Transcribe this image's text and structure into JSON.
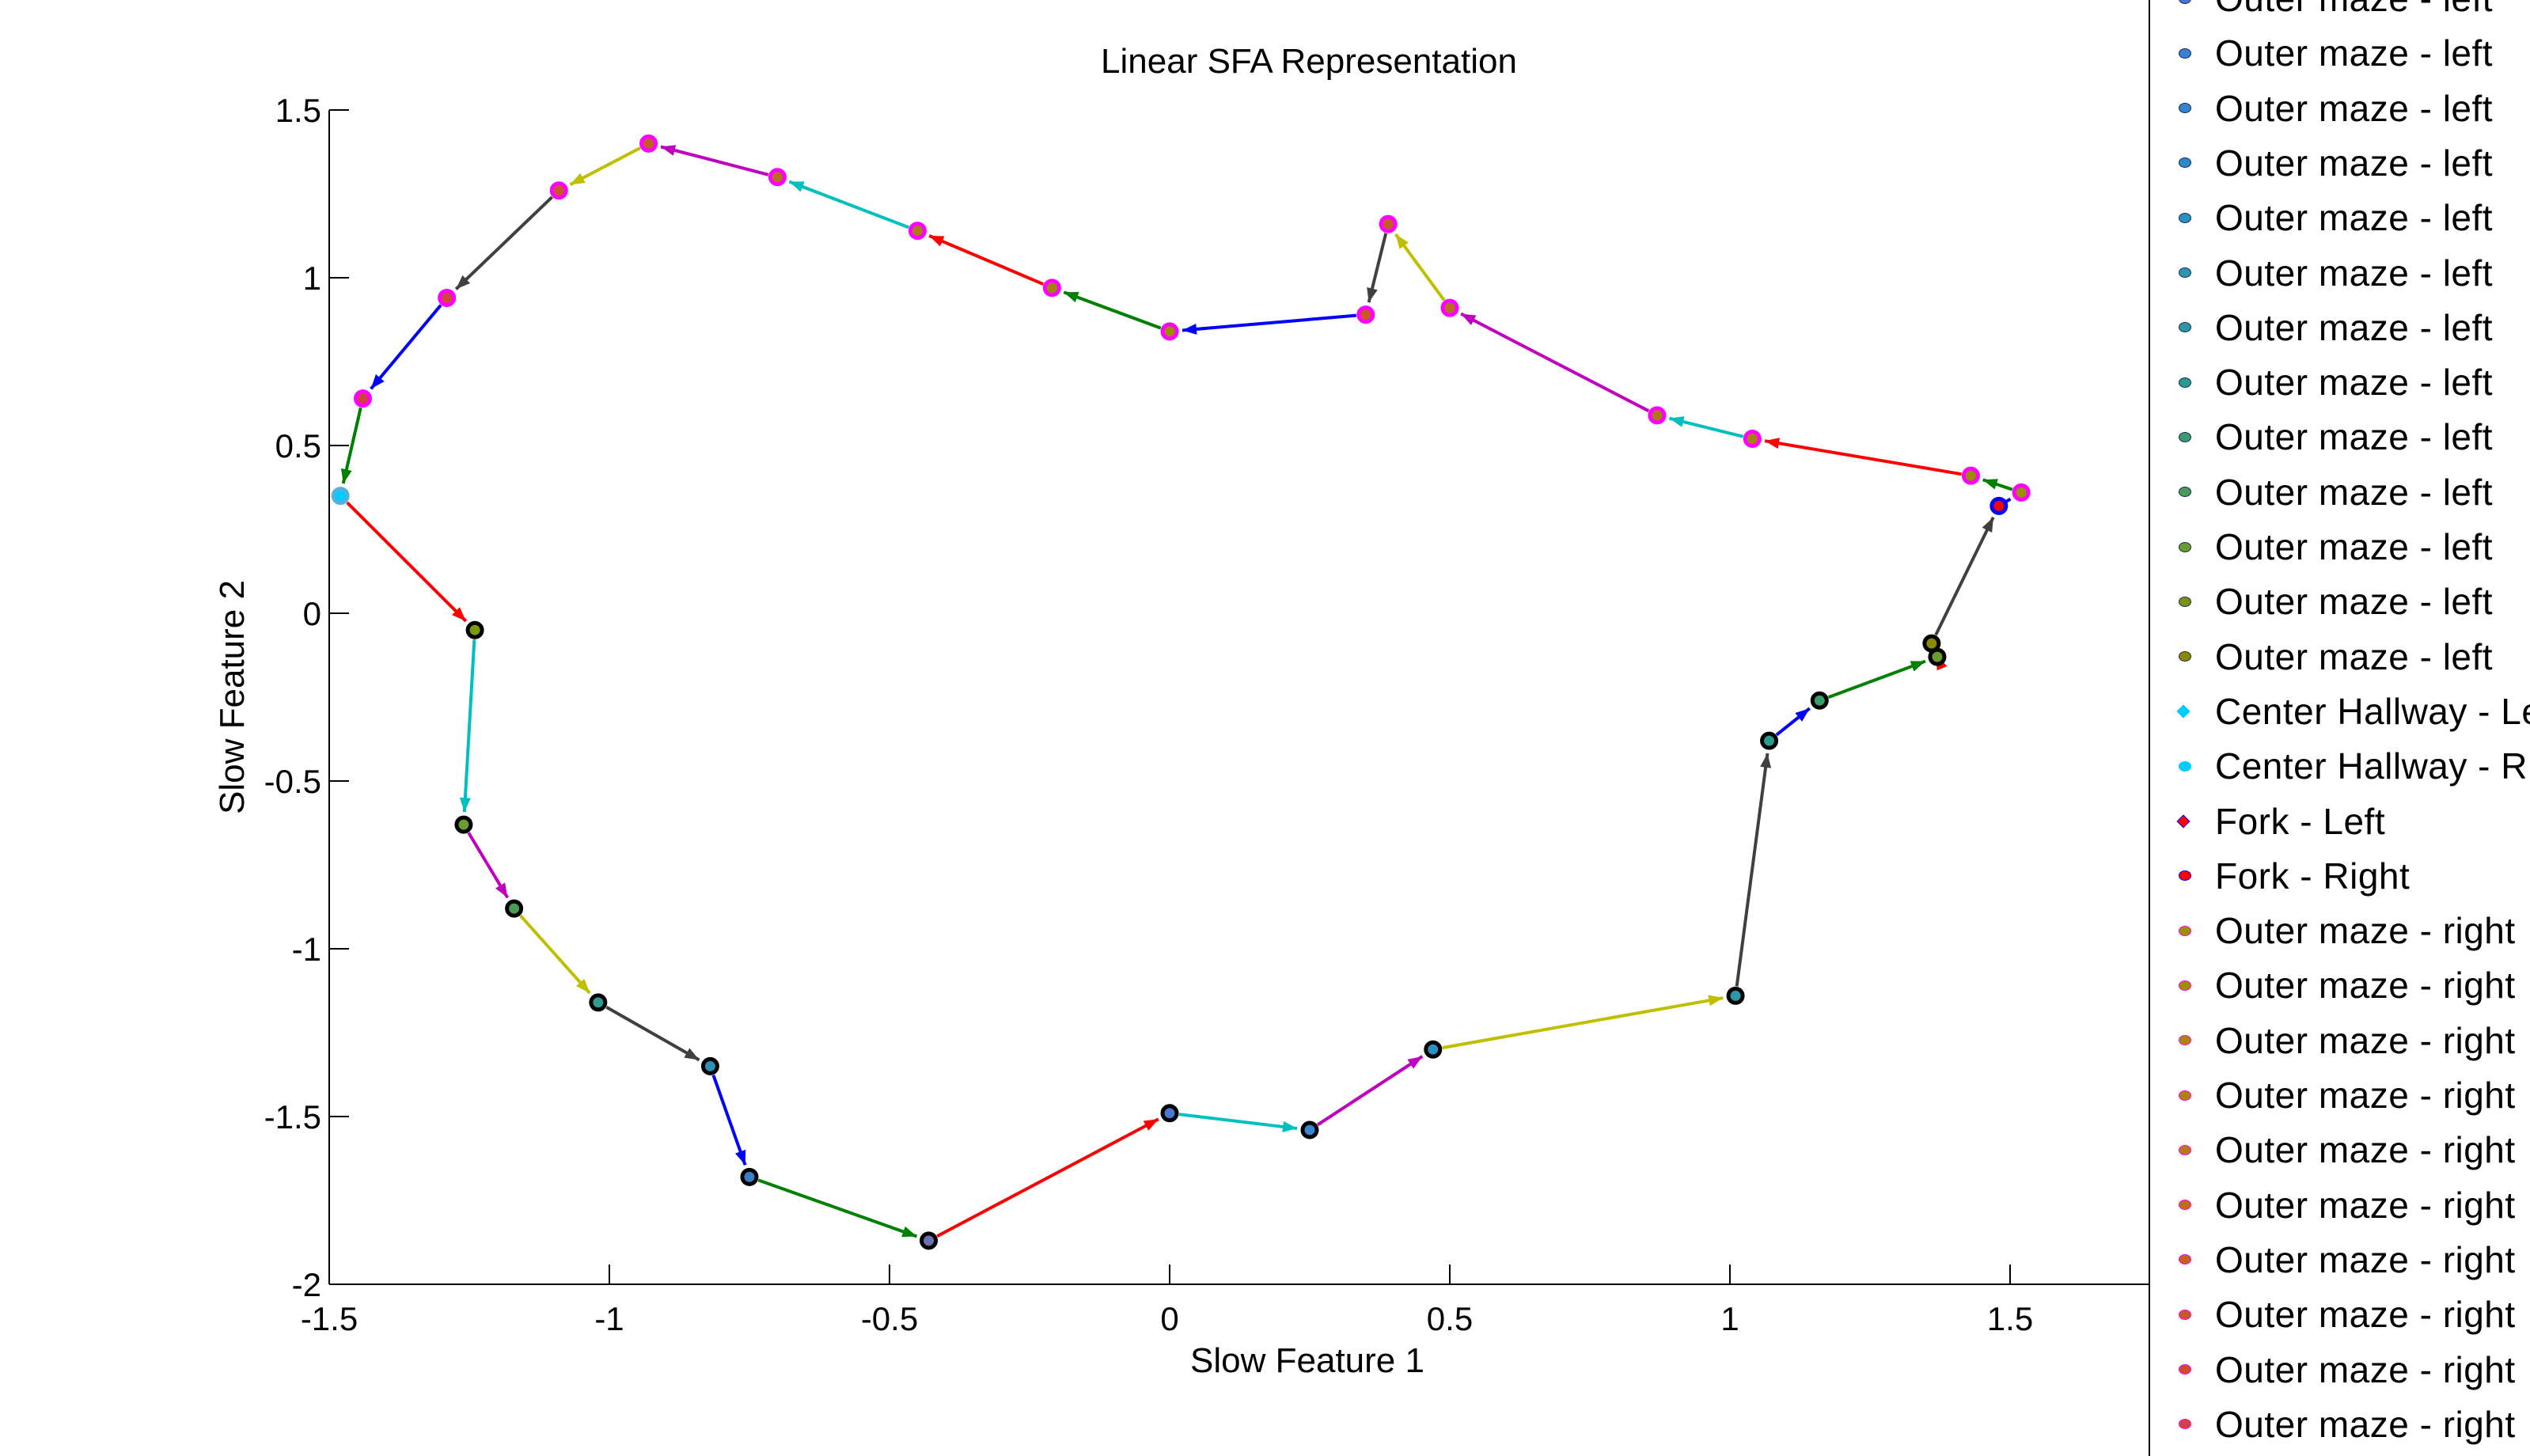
{
  "chart_data": {
    "type": "scatter",
    "title": "Linear SFA Representation",
    "xlabel": "Slow Feature 1",
    "ylabel": "Slow Feature 2",
    "xlim": [
      -1.5,
      2
    ],
    "ylim": [
      -2,
      1.5
    ],
    "xticks": [
      "-1.5",
      "-1",
      "-0.5",
      "0",
      "0.5",
      "1",
      "1.5"
    ],
    "yticks": [
      "-2",
      "-1.5",
      "-1",
      "-0.5",
      "0",
      "0.5",
      "1",
      "1.5"
    ],
    "grid": false,
    "legend_position": "outside-right",
    "points": [
      {
        "x": -1.48,
        "y": 0.35,
        "group": "Center Hallway - Right",
        "fill": "#00ccff",
        "edge": "#55b0e0"
      },
      {
        "x": -1.24,
        "y": -0.05,
        "group": "Outer maze - left",
        "fill": "#7a9a10",
        "edge": "#000000"
      },
      {
        "x": -1.26,
        "y": -0.63,
        "group": "Outer maze - left",
        "fill": "#6a9a30",
        "edge": "#000000"
      },
      {
        "x": -1.17,
        "y": -0.88,
        "group": "Outer maze - left",
        "fill": "#4a9a58",
        "edge": "#000000"
      },
      {
        "x": -1.02,
        "y": -1.16,
        "group": "Outer maze - left",
        "fill": "#309a90",
        "edge": "#000000"
      },
      {
        "x": -0.82,
        "y": -1.35,
        "group": "Outer maze - left",
        "fill": "#2a90b8",
        "edge": "#000000"
      },
      {
        "x": -0.75,
        "y": -1.68,
        "group": "Outer maze - left",
        "fill": "#3a80c8",
        "edge": "#000000"
      },
      {
        "x": -0.43,
        "y": -1.87,
        "group": "Outer maze - left",
        "fill": "#6a70b0",
        "edge": "#000000"
      },
      {
        "x": 0.0,
        "y": -1.49,
        "group": "Outer maze - left",
        "fill": "#4a78d0",
        "edge": "#000000"
      },
      {
        "x": 0.25,
        "y": -1.54,
        "group": "Outer maze - left",
        "fill": "#3a86cc",
        "edge": "#000000"
      },
      {
        "x": 0.47,
        "y": -1.3,
        "group": "Outer maze - left",
        "fill": "#2a92c0",
        "edge": "#000000"
      },
      {
        "x": 1.01,
        "y": -1.14,
        "group": "Outer maze - left",
        "fill": "#2a9aa8",
        "edge": "#000000"
      },
      {
        "x": 1.07,
        "y": -0.38,
        "group": "Outer maze - left",
        "fill": "#2a9a8a",
        "edge": "#000000"
      },
      {
        "x": 1.16,
        "y": -0.26,
        "group": "Outer maze - left",
        "fill": "#3a9a68",
        "edge": "#000000"
      },
      {
        "x": 1.37,
        "y": -0.13,
        "group": "Outer maze - left",
        "fill": "#6a9a30",
        "edge": "#000000"
      },
      {
        "x": 1.36,
        "y": -0.09,
        "group": "Outer maze - left",
        "fill": "#8a8a00",
        "edge": "#000000"
      },
      {
        "x": 1.48,
        "y": 0.32,
        "group": "Fork - Right",
        "fill": "#ff0000",
        "edge": "#0000ff"
      },
      {
        "x": 1.52,
        "y": 0.36,
        "group": "Outer maze - right",
        "fill": "#9a9000",
        "edge": "#ff00ff"
      },
      {
        "x": 1.43,
        "y": 0.41,
        "group": "Outer maze - right",
        "fill": "#a08800",
        "edge": "#ff00ff"
      },
      {
        "x": 1.04,
        "y": 0.52,
        "group": "Outer maze - right",
        "fill": "#a88010",
        "edge": "#ff00ff"
      },
      {
        "x": 0.87,
        "y": 0.59,
        "group": "Outer maze - right",
        "fill": "#b07818",
        "edge": "#ff00ff"
      },
      {
        "x": 0.5,
        "y": 0.91,
        "group": "Outer maze - right",
        "fill": "#b87020",
        "edge": "#ff00ff"
      },
      {
        "x": 0.39,
        "y": 1.16,
        "group": "Outer maze - right",
        "fill": "#c06020",
        "edge": "#ff00ff"
      },
      {
        "x": 0.35,
        "y": 0.89,
        "group": "Outer maze - right",
        "fill": "#c85828",
        "edge": "#ff00ff"
      },
      {
        "x": 0.0,
        "y": 0.84,
        "group": "Outer maze - right",
        "fill": "#a08800",
        "edge": "#ff00ff"
      },
      {
        "x": -0.21,
        "y": 0.97,
        "group": "Outer maze - right",
        "fill": "#a88010",
        "edge": "#ff00ff"
      },
      {
        "x": -0.45,
        "y": 1.14,
        "group": "Outer maze - right",
        "fill": "#b07818",
        "edge": "#ff00ff"
      },
      {
        "x": -0.7,
        "y": 1.3,
        "group": "Outer maze - right",
        "fill": "#b87020",
        "edge": "#ff00ff"
      },
      {
        "x": -0.93,
        "y": 1.4,
        "group": "Outer maze - right",
        "fill": "#c06020",
        "edge": "#ff00ff"
      },
      {
        "x": -1.09,
        "y": 1.26,
        "group": "Outer maze - right",
        "fill": "#c85828",
        "edge": "#ff00ff"
      },
      {
        "x": -1.29,
        "y": 0.94,
        "group": "Outer maze - right",
        "fill": "#d04838",
        "edge": "#ff00ff"
      },
      {
        "x": -1.44,
        "y": 0.64,
        "group": "Outer maze - right",
        "fill": "#d04040",
        "edge": "#ff00ff"
      }
    ],
    "arrow_colors": [
      "#ff0000",
      "#00bfbf",
      "#bf00bf",
      "#bfbf00",
      "#404040",
      "#0000ff",
      "#008000",
      "#ff0000",
      "#00bfbf",
      "#bf00bf",
      "#bfbf00",
      "#404040",
      "#0000ff",
      "#008000",
      "#ff0000",
      "#404040",
      "#0000ff",
      "#008000",
      "#ff0000",
      "#00bfbf",
      "#bf00bf",
      "#bfbf00",
      "#404040",
      "#0000ff",
      "#008000",
      "#ff0000",
      "#00bfbf",
      "#bf00bf",
      "#bfbf00",
      "#404040",
      "#0000ff",
      "#008000"
    ]
  },
  "legend": {
    "entries": [
      {
        "label": "Outer maze - left",
        "color": "#4a72d0",
        "edge": "#1a2a60",
        "shape": "circle"
      },
      {
        "label": "Outer maze - left",
        "color": "#3a7fd0",
        "edge": "#1a2a60",
        "shape": "circle"
      },
      {
        "label": "Outer maze - left",
        "color": "#3284cc",
        "edge": "#1a2a60",
        "shape": "circle"
      },
      {
        "label": "Outer maze - left",
        "color": "#2a8ac8",
        "edge": "#1a2a60",
        "shape": "circle"
      },
      {
        "label": "Outer maze - left",
        "color": "#2a90c0",
        "edge": "#1a2a60",
        "shape": "circle"
      },
      {
        "label": "Outer maze - left",
        "color": "#2a96b0",
        "edge": "#1a2a60",
        "shape": "circle"
      },
      {
        "label": "Outer maze - left",
        "color": "#2a9aa0",
        "edge": "#1a2a60",
        "shape": "circle"
      },
      {
        "label": "Outer maze - left",
        "color": "#2a9a90",
        "edge": "#1a2a60",
        "shape": "circle"
      },
      {
        "label": "Outer maze - left",
        "color": "#3a9a70",
        "edge": "#1a2a60",
        "shape": "circle"
      },
      {
        "label": "Outer maze - left",
        "color": "#4a9a58",
        "edge": "#1a2a60",
        "shape": "circle"
      },
      {
        "label": "Outer maze - left",
        "color": "#6a9a30",
        "edge": "#1a2a60",
        "shape": "circle"
      },
      {
        "label": "Outer maze - left",
        "color": "#7a9410",
        "edge": "#1a2a60",
        "shape": "circle"
      },
      {
        "label": "Outer maze - left",
        "color": "#8a8a00",
        "edge": "#1a2a60",
        "shape": "circle"
      },
      {
        "label": "Center Hallway - Left",
        "color": "#00ccff",
        "edge": "#00ccff",
        "shape": "diamond"
      },
      {
        "label": "Center Hallway - Right",
        "color": "#00ccff",
        "edge": "#00ccff",
        "shape": "circle"
      },
      {
        "label": "Fork - Left",
        "color": "#ff0000",
        "edge": "#0000ff",
        "shape": "diamond"
      },
      {
        "label": "Fork - Right",
        "color": "#ff0000",
        "edge": "#0000ff",
        "shape": "circle"
      },
      {
        "label": "Outer maze - right",
        "color": "#9a9000",
        "edge": "#ff00ff",
        "shape": "circle"
      },
      {
        "label": "Outer maze - right",
        "color": "#a08c00",
        "edge": "#ff00ff",
        "shape": "circle"
      },
      {
        "label": "Outer maze - right",
        "color": "#a88808",
        "edge": "#ff00ff",
        "shape": "circle"
      },
      {
        "label": "Outer maze - right",
        "color": "#b08010",
        "edge": "#ff00ff",
        "shape": "circle"
      },
      {
        "label": "Outer maze - right",
        "color": "#b87818",
        "edge": "#ff00ff",
        "shape": "circle"
      },
      {
        "label": "Outer maze - right",
        "color": "#c06c18",
        "edge": "#ff00ff",
        "shape": "circle"
      },
      {
        "label": "Outer maze - right",
        "color": "#c46020",
        "edge": "#ff00ff",
        "shape": "circle"
      },
      {
        "label": "Outer maze - right",
        "color": "#c85828",
        "edge": "#ff00ff",
        "shape": "circle"
      },
      {
        "label": "Outer maze - right",
        "color": "#cc4c30",
        "edge": "#ff00ff",
        "shape": "circle"
      },
      {
        "label": "Outer maze - right",
        "color": "#d04440",
        "edge": "#ff00ff",
        "shape": "circle"
      }
    ]
  }
}
